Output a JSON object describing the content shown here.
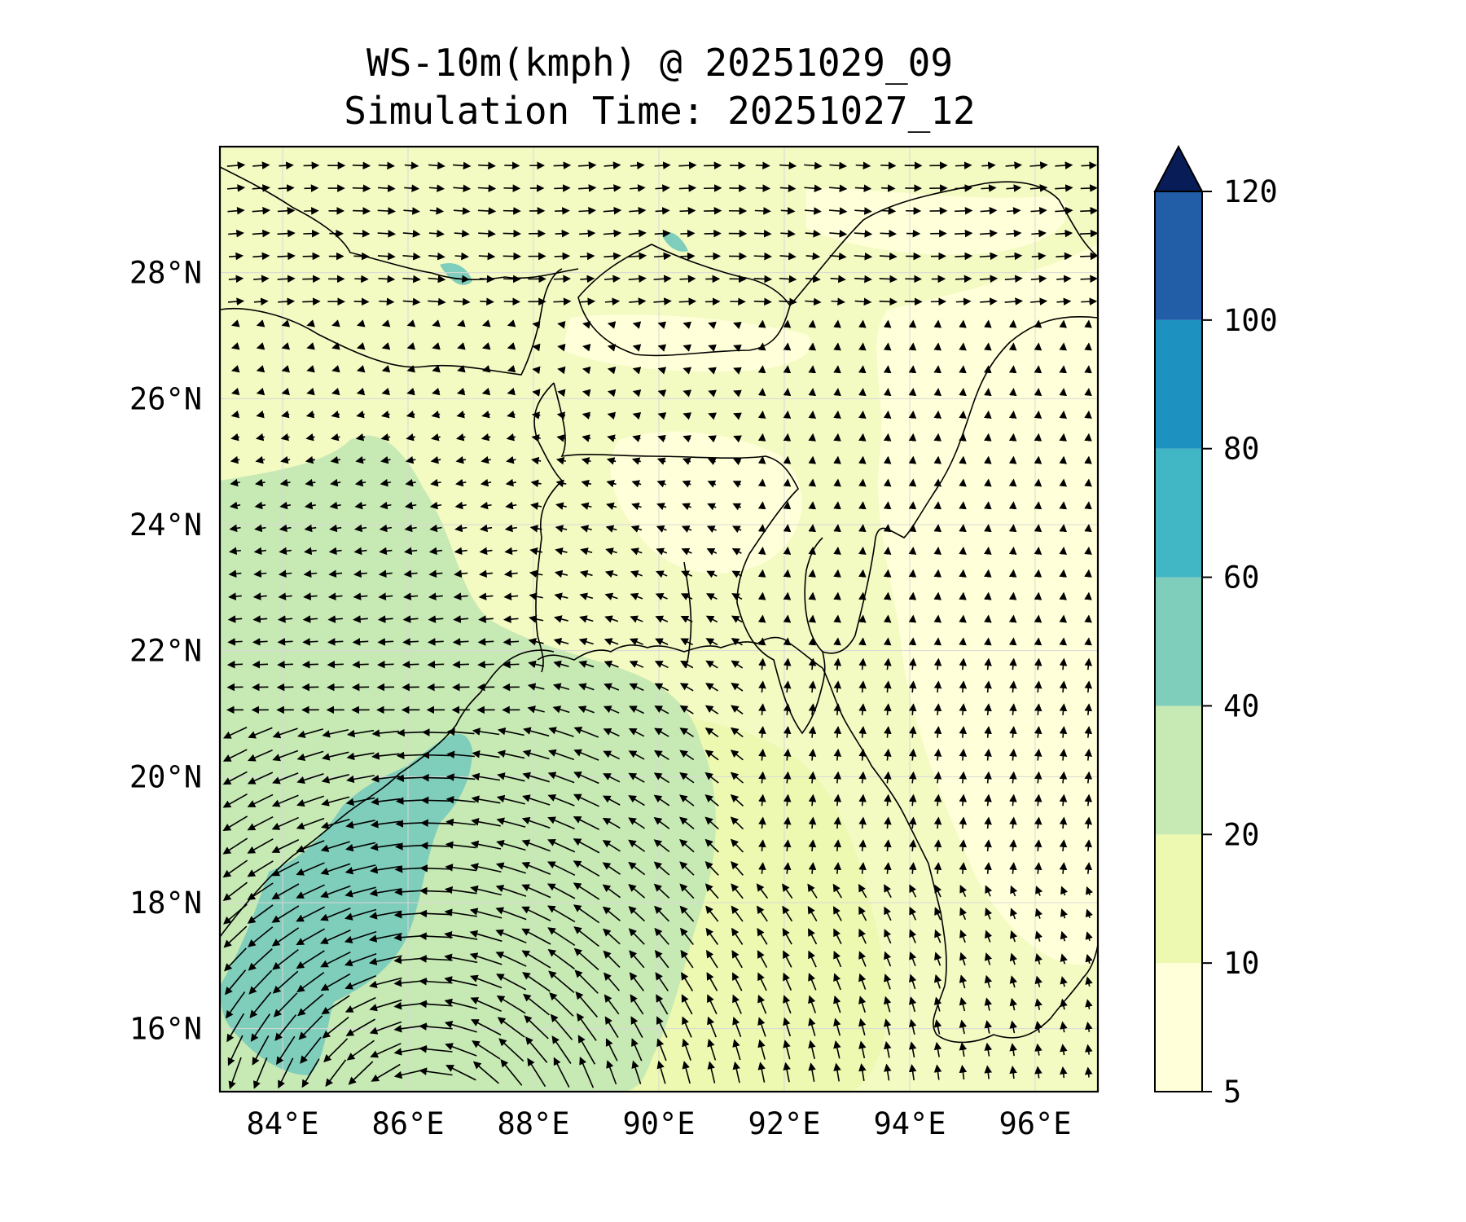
{
  "title": {
    "line1": "WS-10m(kmph) @ 20251029_09",
    "line2": "Simulation Time: 20251027_12"
  },
  "map": {
    "variable": "WS-10m(kmph)",
    "lon_range": [
      83,
      97
    ],
    "lat_range": [
      15,
      30
    ],
    "lon_ticks": [
      "84°E",
      "86°E",
      "88°E",
      "90°E",
      "92°E",
      "94°E",
      "96°E"
    ],
    "lat_ticks": [
      "16°N",
      "18°N",
      "20°N",
      "22°N",
      "24°N",
      "26°N",
      "28°N"
    ],
    "lon_tick_values": [
      84,
      86,
      88,
      90,
      92,
      94,
      96
    ],
    "lat_tick_values": [
      16,
      18,
      20,
      22,
      24,
      26,
      28
    ],
    "gridlines": true,
    "features": [
      "coastlines",
      "country borders",
      "wind vectors"
    ]
  },
  "colorbar": {
    "orientation": "vertical",
    "extend": "max",
    "levels": [
      5,
      10,
      20,
      40,
      60,
      80,
      100,
      120
    ],
    "tick_labels": [
      "5",
      "10",
      "20",
      "40",
      "60",
      "80",
      "100",
      "120"
    ],
    "colors": [
      "#ffffd9",
      "#edf8b1",
      "#c7e9b4",
      "#7fcdbb",
      "#41b6c4",
      "#1d91c0",
      "#225ea8",
      "#0c2c84"
    ],
    "extend_color": "#081d58"
  }
}
